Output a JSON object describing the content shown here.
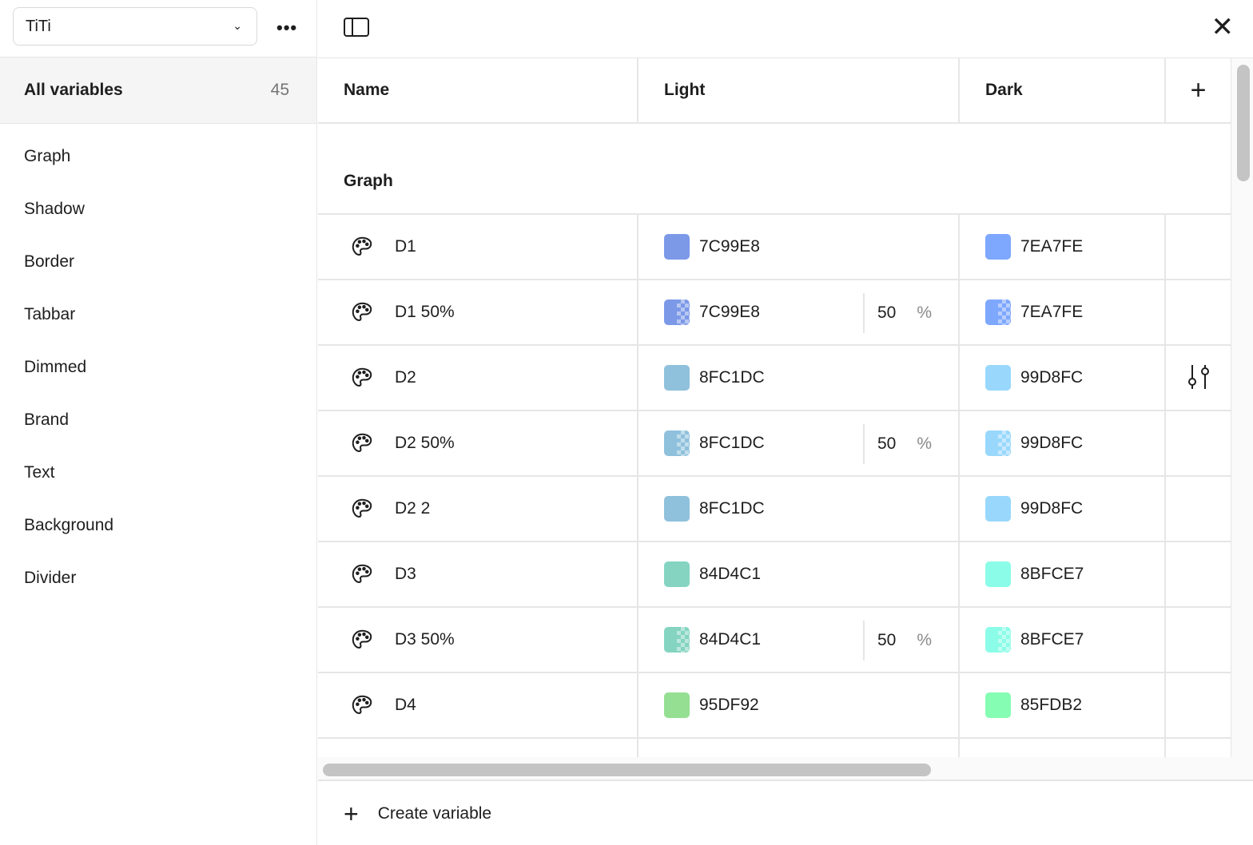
{
  "sidebar": {
    "collection": "TiTi",
    "all_label": "All variables",
    "all_count": "45",
    "groups": [
      "Graph",
      "Shadow",
      "Border",
      "Tabbar",
      "Dimmed",
      "Brand",
      "Text",
      "Background",
      "Divider"
    ]
  },
  "table": {
    "headers": {
      "name": "Name",
      "light": "Light",
      "dark": "Dark"
    },
    "group": "Graph",
    "rows": [
      {
        "name": "D1",
        "light": "7C99E8",
        "light_color": "#7C99E8",
        "dark": "7EA7FE",
        "dark_color": "#7EA7FE",
        "alpha": null
      },
      {
        "name": "D1 50%",
        "light": "7C99E8",
        "light_color": "#7C99E8",
        "dark": "7EA7FE",
        "dark_color": "#7EA7FE",
        "alpha": "50",
        "unit": "%"
      },
      {
        "name": "D2",
        "light": "8FC1DC",
        "light_color": "#8FC1DC",
        "dark": "99D8FC",
        "dark_color": "#99D8FC",
        "alpha": null,
        "hover_action": "edit-variable-icon"
      },
      {
        "name": "D2 50%",
        "light": "8FC1DC",
        "light_color": "#8FC1DC",
        "dark": "99D8FC",
        "dark_color": "#99D8FC",
        "alpha": "50",
        "unit": "%"
      },
      {
        "name": "D2 2",
        "light": "8FC1DC",
        "light_color": "#8FC1DC",
        "dark": "99D8FC",
        "dark_color": "#99D8FC",
        "alpha": null
      },
      {
        "name": "D3",
        "light": "84D4C1",
        "light_color": "#84D4C1",
        "dark": "8BFCE7",
        "dark_color": "#8BFCE7",
        "alpha": null
      },
      {
        "name": "D3 50%",
        "light": "84D4C1",
        "light_color": "#84D4C1",
        "dark": "8BFCE7",
        "dark_color": "#8BFCE7",
        "alpha": "50",
        "unit": "%"
      },
      {
        "name": "D4",
        "light": "95DF92",
        "light_color": "#95DF92",
        "dark": "85FDB2",
        "dark_color": "#85FDB2",
        "alpha": null
      }
    ]
  },
  "footer": {
    "create_label": "Create variable"
  }
}
